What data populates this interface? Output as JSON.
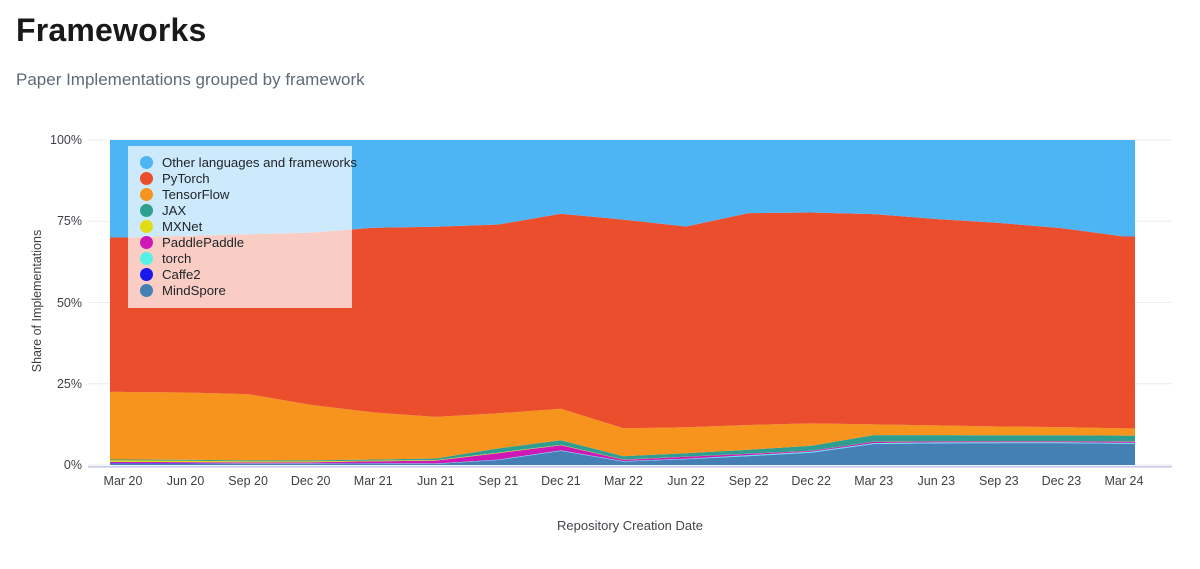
{
  "header": {
    "title": "Frameworks",
    "subtitle": "Paper Implementations grouped by framework"
  },
  "chart_data": {
    "type": "area",
    "stacked": true,
    "normalized": "percent",
    "title": "Frameworks",
    "xlabel": "Repository Creation Date",
    "ylabel": "Share of Implementations",
    "ylim": [
      0,
      100
    ],
    "grid": true,
    "legend_position": "top-left-overlay",
    "y_ticks": [
      {
        "label": "0%",
        "value": 0
      },
      {
        "label": "25%",
        "value": 25
      },
      {
        "label": "50%",
        "value": 50
      },
      {
        "label": "75%",
        "value": 75
      },
      {
        "label": "100%",
        "value": 100
      }
    ],
    "x": [
      "Mar 20",
      "Jun 20",
      "Sep 20",
      "Dec 20",
      "Mar 21",
      "Jun 21",
      "Sep 21",
      "Dec 21",
      "Mar 22",
      "Jun 22",
      "Sep 22",
      "Dec 22",
      "Mar 23",
      "Jun 23",
      "Sep 23",
      "Dec 23",
      "Mar 24"
    ],
    "stack_order_bottom_to_top": [
      "MindSpore",
      "Caffe2",
      "torch",
      "PaddlePaddle",
      "MXNet",
      "JAX",
      "TensorFlow",
      "PyTorch",
      "Other languages and frameworks"
    ],
    "series": [
      {
        "name": "Other languages and frameworks",
        "color": "#4eb5f5",
        "values": [
          30.0,
          29.5,
          29.0,
          28.5,
          27.0,
          26.7,
          26.0,
          22.7,
          24.5,
          26.6,
          22.5,
          22.3,
          22.8,
          24.3,
          25.5,
          27.1,
          29.7
        ]
      },
      {
        "name": "PyTorch",
        "color": "#ea4e2d",
        "values": [
          47.5,
          48.2,
          49.2,
          53.0,
          56.8,
          58.5,
          58.1,
          60.0,
          64.2,
          61.8,
          65.2,
          64.9,
          64.7,
          63.5,
          62.65,
          61.25,
          59.05
        ]
      },
      {
        "name": "TensorFlow",
        "color": "#f6941e",
        "values": [
          20.8,
          20.7,
          20.4,
          17.1,
          14.5,
          12.8,
          10.8,
          9.7,
          8.6,
          8.0,
          7.6,
          6.9,
          3.3,
          3.0,
          2.7,
          2.5,
          2.2
        ]
      },
      {
        "name": "JAX",
        "color": "#2d9e90",
        "values": [
          0.3,
          0.3,
          0.3,
          0.3,
          0.35,
          0.5,
          1.3,
          1.4,
          1.0,
          1.0,
          1.2,
          1.5,
          2.0,
          1.9,
          1.8,
          1.8,
          1.8
        ]
      },
      {
        "name": "MXNet",
        "color": "#e2dc15",
        "values": [
          0.45,
          0.4,
          0.3,
          0.25,
          0.2,
          0.15,
          0.15,
          0.1,
          0.1,
          0.05,
          0.05,
          0.05,
          0.05,
          0.05,
          0.05,
          0.05,
          0.05
        ]
      },
      {
        "name": "PaddlePaddle",
        "color": "#ce18b6",
        "values": [
          0.35,
          0.35,
          0.3,
          0.35,
          0.55,
          0.9,
          2.0,
          1.6,
          0.4,
          0.6,
          0.4,
          0.3,
          0.4,
          0.3,
          0.3,
          0.3,
          0.4
        ]
      },
      {
        "name": "torch",
        "color": "#54f1e6",
        "values": [
          0.1,
          0.1,
          0.1,
          0.1,
          0.1,
          0.1,
          0.1,
          0.15,
          0.15,
          0.2,
          0.3,
          0.3,
          0.3,
          0.3,
          0.25,
          0.25,
          0.25
        ]
      },
      {
        "name": "Caffe2",
        "color": "#1a18ea",
        "values": [
          0.2,
          0.15,
          0.1,
          0.1,
          0.1,
          0.05,
          0.05,
          0.05,
          0.05,
          0.05,
          0.05,
          0.05,
          0.05,
          0.05,
          0.05,
          0.05,
          0.05
        ]
      },
      {
        "name": "MindSpore",
        "color": "#4480b4",
        "values": [
          0.3,
          0.3,
          0.3,
          0.3,
          0.4,
          0.3,
          1.5,
          4.3,
          1.0,
          1.7,
          2.7,
          3.7,
          6.4,
          6.6,
          6.7,
          6.7,
          6.5
        ]
      }
    ],
    "style": {
      "grid_color": "#ebebf0",
      "zero_axis_color": "#c9c9ea",
      "legend_background": "rgba(255,255,255,0.72)"
    }
  }
}
